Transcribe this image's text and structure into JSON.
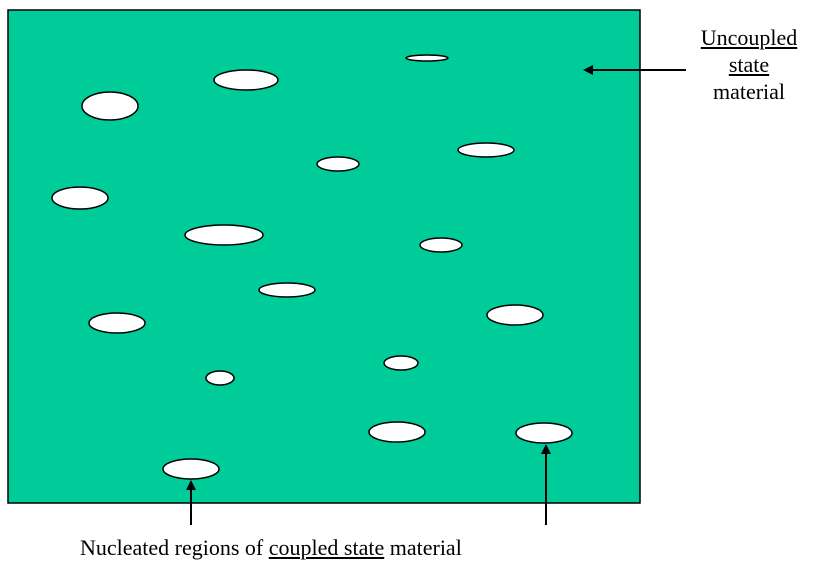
{
  "colors": {
    "material": "#00CC99",
    "border": "#000000",
    "region_fill": "#FFFFFF"
  },
  "labels": {
    "uncoupled_line1": "Uncoupled",
    "uncoupled_line2": "state",
    "uncoupled_line3": "material",
    "nucleated_prefix": "Nucleated regions of",
    "nucleated_highlight": "coupled state",
    "nucleated_suffix": "material"
  }
}
